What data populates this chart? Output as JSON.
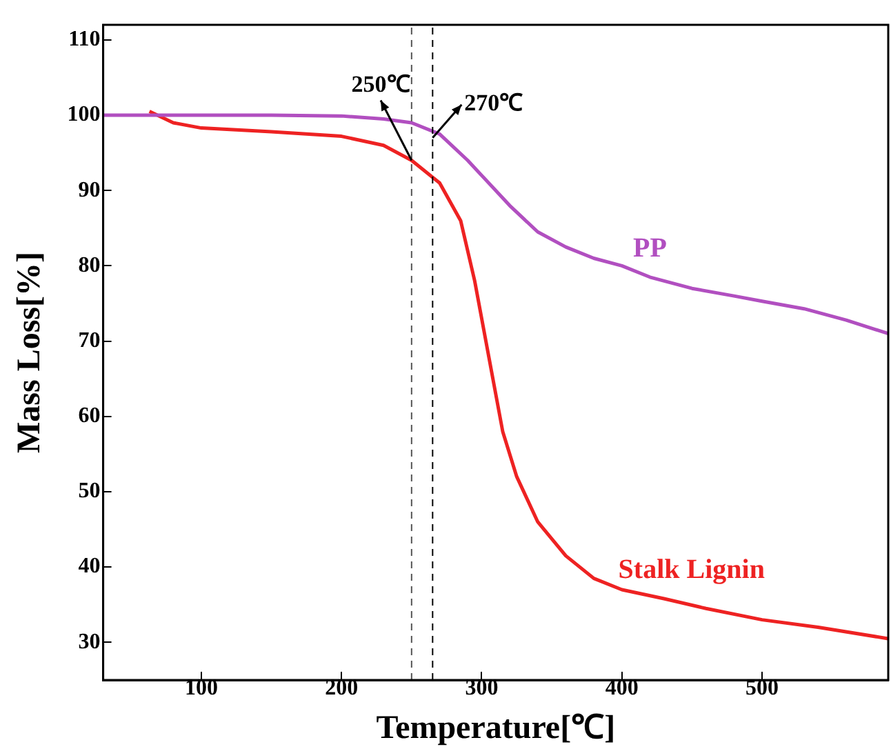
{
  "chart_data": {
    "type": "line",
    "xlabel": "Temperature[℃]",
    "ylabel": "Mass Loss[%]",
    "xlim": [
      30,
      590
    ],
    "xticks": [
      100,
      200,
      300,
      400,
      500
    ],
    "ylim": [
      25,
      112
    ],
    "yticks": [
      30,
      40,
      50,
      60,
      70,
      80,
      90,
      100,
      110
    ],
    "grid": false,
    "legend": false,
    "marker": "none",
    "line_style": "solid",
    "series": [
      {
        "name": "PP",
        "color": "#b14fc0",
        "x": [
          30,
          100,
          150,
          200,
          230,
          250,
          270,
          290,
          300,
          320,
          340,
          360,
          380,
          400,
          420,
          450,
          480,
          500,
          530,
          560,
          590
        ],
        "values": [
          100,
          100,
          100,
          99.9,
          99.5,
          99,
          97.5,
          94,
          92,
          88,
          84.5,
          82.5,
          81,
          80,
          78.5,
          77,
          76,
          75.3,
          74.3,
          72.8,
          71
        ]
      },
      {
        "name": "Stalk Lignin",
        "color": "#ee2222",
        "x": [
          63,
          80,
          100,
          150,
          200,
          230,
          250,
          270,
          285,
          295,
          305,
          315,
          325,
          340,
          360,
          380,
          400,
          430,
          460,
          500,
          540,
          590
        ],
        "values": [
          100.5,
          99,
          98.3,
          97.8,
          97.2,
          96,
          94,
          91,
          86,
          78,
          68,
          58,
          52,
          46,
          41.5,
          38.5,
          37,
          35.8,
          34.5,
          33,
          32,
          30.5
        ]
      }
    ],
    "ref_lines": [
      {
        "axis": "x",
        "value": 250,
        "color": "#555555",
        "line_style": "dashed"
      },
      {
        "axis": "x",
        "value": 265,
        "color": "#000000",
        "line_style": "dashed"
      }
    ],
    "annotations": [
      {
        "text": "250℃",
        "x": 250,
        "y": 94
      },
      {
        "text": "270℃",
        "x": 265,
        "y": 97
      }
    ]
  }
}
